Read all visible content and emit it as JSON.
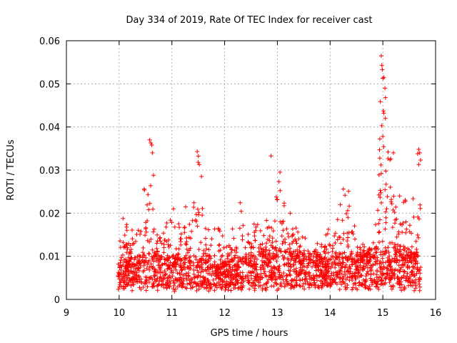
{
  "chart_data": {
    "type": "scatter",
    "title": "Day 334 of 2019, Rate Of TEC Index for receiver cast",
    "xlabel": "GPS time / hours",
    "ylabel": "ROTI / TECUs",
    "xlim": [
      9,
      16
    ],
    "ylim": [
      0,
      0.06
    ],
    "x_ticks": [
      9,
      10,
      11,
      12,
      13,
      14,
      15,
      16
    ],
    "x_tick_labels": [
      "9",
      "10",
      "11",
      "12",
      "13",
      "14",
      "15",
      "16"
    ],
    "y_ticks": [
      0,
      0.01,
      0.02,
      0.03,
      0.04,
      0.05,
      0.06
    ],
    "y_tick_labels": [
      "0",
      "0.01",
      "0.02",
      "0.03",
      "0.04",
      "0.05",
      "0.06"
    ],
    "grid": true,
    "marker": "+",
    "series": [
      {
        "name": "ROTI",
        "color": "#ff0000",
        "x_range": [
          9.98,
          15.72
        ],
        "baseline": [
          [
            9.98,
            0.007
          ],
          [
            10.2,
            0.0075
          ],
          [
            10.4,
            0.008
          ],
          [
            10.6,
            0.0085
          ],
          [
            10.8,
            0.008
          ],
          [
            11.0,
            0.008
          ],
          [
            11.2,
            0.0075
          ],
          [
            11.4,
            0.008
          ],
          [
            11.6,
            0.0075
          ],
          [
            11.8,
            0.007
          ],
          [
            12.0,
            0.0072
          ],
          [
            12.2,
            0.0078
          ],
          [
            12.4,
            0.008
          ],
          [
            12.6,
            0.0085
          ],
          [
            12.8,
            0.009
          ],
          [
            13.0,
            0.0092
          ],
          [
            13.2,
            0.009
          ],
          [
            13.4,
            0.0085
          ],
          [
            13.6,
            0.0082
          ],
          [
            13.8,
            0.008
          ],
          [
            14.0,
            0.0078
          ],
          [
            14.2,
            0.008
          ],
          [
            14.4,
            0.0082
          ],
          [
            14.6,
            0.0085
          ],
          [
            14.8,
            0.009
          ],
          [
            15.0,
            0.01
          ],
          [
            15.2,
            0.01
          ],
          [
            15.4,
            0.0095
          ],
          [
            15.6,
            0.009
          ],
          [
            15.72,
            0.0085
          ]
        ],
        "upper_envelope": [
          [
            9.98,
            0.012
          ],
          [
            10.05,
            0.017
          ],
          [
            10.1,
            0.022
          ],
          [
            10.2,
            0.016
          ],
          [
            10.3,
            0.018
          ],
          [
            10.4,
            0.022
          ],
          [
            10.45,
            0.025
          ],
          [
            10.5,
            0.027
          ],
          [
            10.55,
            0.036
          ],
          [
            10.6,
            0.037
          ],
          [
            10.65,
            0.029
          ],
          [
            10.7,
            0.022
          ],
          [
            10.8,
            0.019
          ],
          [
            10.9,
            0.018
          ],
          [
            11.0,
            0.021
          ],
          [
            11.05,
            0.025
          ],
          [
            11.1,
            0.022
          ],
          [
            11.2,
            0.026
          ],
          [
            11.3,
            0.02
          ],
          [
            11.4,
            0.02
          ],
          [
            11.45,
            0.031
          ],
          [
            11.5,
            0.034
          ],
          [
            11.55,
            0.027
          ],
          [
            11.6,
            0.02
          ],
          [
            11.7,
            0.017
          ],
          [
            11.8,
            0.021
          ],
          [
            11.9,
            0.016
          ],
          [
            12.0,
            0.015
          ],
          [
            12.1,
            0.016
          ],
          [
            12.2,
            0.018
          ],
          [
            12.3,
            0.025
          ],
          [
            12.4,
            0.019
          ],
          [
            12.5,
            0.017
          ],
          [
            12.6,
            0.019
          ],
          [
            12.7,
            0.016
          ],
          [
            12.8,
            0.021
          ],
          [
            12.9,
            0.021
          ],
          [
            12.95,
            0.024
          ],
          [
            13.0,
            0.026
          ],
          [
            13.05,
            0.029
          ],
          [
            13.1,
            0.025
          ],
          [
            13.2,
            0.022
          ],
          [
            13.3,
            0.018
          ],
          [
            13.4,
            0.017
          ],
          [
            13.5,
            0.014
          ],
          [
            13.6,
            0.015
          ],
          [
            13.7,
            0.014
          ],
          [
            13.8,
            0.013
          ],
          [
            13.9,
            0.016
          ],
          [
            14.0,
            0.017
          ],
          [
            14.1,
            0.016
          ],
          [
            14.2,
            0.023
          ],
          [
            14.3,
            0.025
          ],
          [
            14.4,
            0.025
          ],
          [
            14.5,
            0.016
          ],
          [
            14.6,
            0.013
          ],
          [
            14.7,
            0.012
          ],
          [
            14.8,
            0.013
          ],
          [
            14.9,
            0.02
          ],
          [
            14.95,
            0.053
          ],
          [
            15.0,
            0.057
          ],
          [
            15.05,
            0.048
          ],
          [
            15.1,
            0.038
          ],
          [
            15.15,
            0.034
          ],
          [
            15.2,
            0.031
          ],
          [
            15.3,
            0.027
          ],
          [
            15.4,
            0.025
          ],
          [
            15.5,
            0.021
          ],
          [
            15.6,
            0.025
          ],
          [
            15.65,
            0.033
          ],
          [
            15.72,
            0.035
          ]
        ],
        "peaks": [
          [
            10.58,
            0.037
          ],
          [
            10.6,
            0.0363
          ],
          [
            10.62,
            0.0358
          ],
          [
            10.63,
            0.034
          ],
          [
            10.65,
            0.0288
          ],
          [
            11.48,
            0.0343
          ],
          [
            11.5,
            0.0318
          ],
          [
            11.52,
            0.0313
          ],
          [
            11.56,
            0.0285
          ],
          [
            12.88,
            0.0333
          ],
          [
            13.05,
            0.0295
          ],
          [
            13.03,
            0.0273
          ],
          [
            14.25,
            0.0256
          ],
          [
            14.35,
            0.0251
          ],
          [
            14.97,
            0.0565
          ],
          [
            14.98,
            0.0543
          ],
          [
            14.99,
            0.0533
          ],
          [
            15.0,
            0.0513
          ],
          [
            15.02,
            0.0515
          ],
          [
            15.04,
            0.049
          ],
          [
            15.05,
            0.0468
          ],
          [
            15.01,
            0.0437
          ],
          [
            15.02,
            0.0432
          ],
          [
            14.98,
            0.0403
          ],
          [
            15.0,
            0.0378
          ],
          [
            15.1,
            0.0342
          ],
          [
            15.2,
            0.034
          ],
          [
            15.15,
            0.0326
          ],
          [
            15.68,
            0.0348
          ],
          [
            15.7,
            0.034
          ],
          [
            15.66,
            0.0338
          ],
          [
            15.68,
            0.0313
          ]
        ]
      }
    ]
  }
}
